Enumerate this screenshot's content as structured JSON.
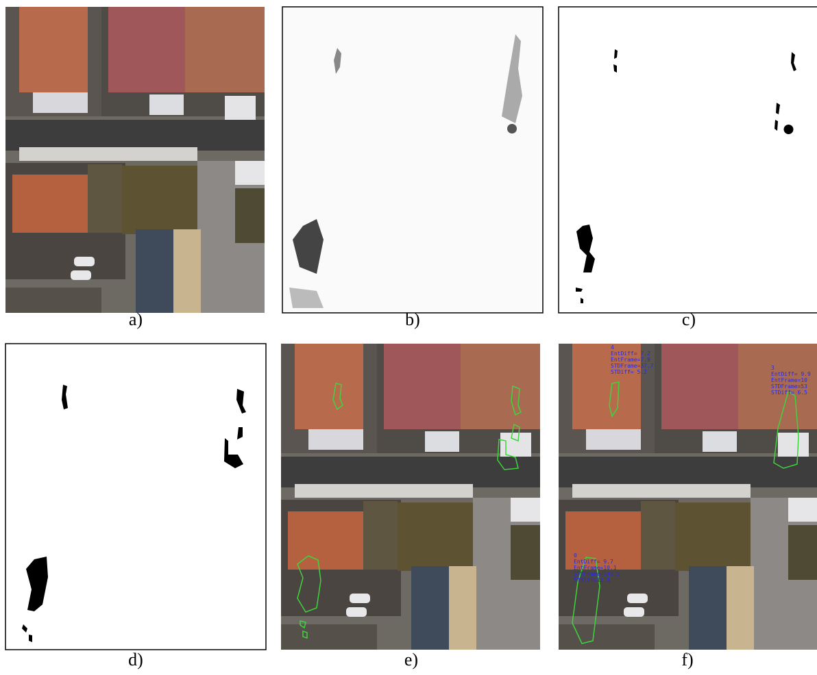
{
  "panels": [
    {
      "label": "a)"
    },
    {
      "label": "b)"
    },
    {
      "label": "c)"
    },
    {
      "label": "d)"
    },
    {
      "label": "e)"
    },
    {
      "label": "f)",
      "annotations": [
        {
          "lines": [
            "4",
            "EntDiff= 7.2",
            "EntFrame=7.9",
            "STDFrame=37.7",
            "STDiff= 5.2"
          ]
        },
        {
          "lines": [
            "3",
            "EntDiff= 9.9",
            "EntFrame=10",
            "STDFrame=53",
            "STDiff= 6.5"
          ]
        },
        {
          "lines": [
            "0",
            "EntDiff= 9.7",
            "EntFrame=10.1",
            "STDFrame=149.5",
            "STDiff=11.8"
          ]
        }
      ]
    }
  ]
}
